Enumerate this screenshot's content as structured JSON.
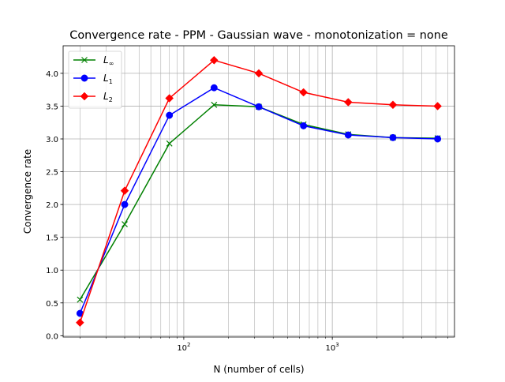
{
  "chart_data": {
    "type": "line",
    "title": "Convergence rate - PPM - Gaussian wave - monotonization = none",
    "xlabel": "N (number of cells)",
    "ylabel": "Convergence rate",
    "xscale": "log",
    "xlim": [
      15.4,
      6650
    ],
    "ylim": [
      -0.02,
      4.42
    ],
    "x_ticks": [
      {
        "value": 100,
        "base": "10",
        "exp": "2"
      },
      {
        "value": 1000,
        "base": "10",
        "exp": "3"
      }
    ],
    "y_ticks": [
      "0.0",
      "0.5",
      "1.0",
      "1.5",
      "2.0",
      "2.5",
      "3.0",
      "3.5",
      "4.0"
    ],
    "grid": "both-major-minor",
    "legend_position": "top-left",
    "x": [
      20,
      40,
      80,
      160,
      320,
      640,
      1280,
      2560,
      5120
    ],
    "series": [
      {
        "name": "L",
        "sub": "∞",
        "color": "#008000",
        "marker": "x",
        "values": [
          0.55,
          1.7,
          2.93,
          3.52,
          3.49,
          3.22,
          3.07,
          3.02,
          3.01
        ]
      },
      {
        "name": "L",
        "sub": "1",
        "color": "#0000ff",
        "marker": "circle",
        "values": [
          0.34,
          2.0,
          3.36,
          3.78,
          3.49,
          3.2,
          3.06,
          3.02,
          3.0
        ]
      },
      {
        "name": "L",
        "sub": "2",
        "color": "#ff0000",
        "marker": "diamond",
        "values": [
          0.2,
          2.21,
          3.62,
          4.2,
          4.0,
          3.71,
          3.56,
          3.52,
          3.5
        ]
      }
    ]
  }
}
